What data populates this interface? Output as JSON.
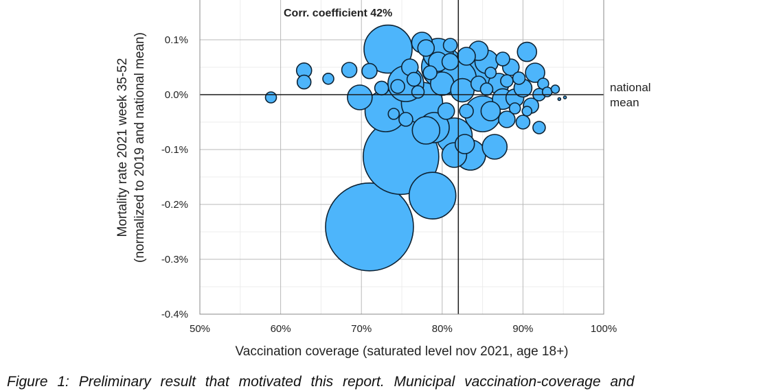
{
  "chart_data": {
    "type": "scatter",
    "subtype": "bubble",
    "title": "Corr. coefficient 42%",
    "xlabel": "Vaccination coverage (saturated level nov 2021, age 18+)",
    "ylabel": [
      "Mortality rate 2021 week 35-52",
      "(normalized to 2019 and national mean)"
    ],
    "xlim": [
      50,
      100
    ],
    "ylim": [
      -0.4,
      0.15
    ],
    "x_ticks": [
      50,
      60,
      70,
      80,
      90,
      100
    ],
    "x_tick_labels": [
      "50%",
      "60%",
      "70%",
      "80%",
      "90%",
      "100%"
    ],
    "y_ticks": [
      0.1,
      0.0,
      -0.1,
      -0.2,
      -0.3,
      -0.4
    ],
    "y_tick_labels": [
      "0.1%",
      "0.0%",
      "-0.1%",
      "-0.2%",
      "-0.3%",
      "-0.4%"
    ],
    "grid": true,
    "reference_lines": {
      "national_mean_x": 82,
      "national_mean_y": 0.0,
      "label": [
        "national",
        "mean"
      ]
    },
    "bubble_color": "#4db5fb",
    "bubble_edge_color": "#0d2233",
    "size_note": "relative bubble size (municipality population, unitless)",
    "points": [
      {
        "x": 71.0,
        "y": -0.241,
        "s": 64
      },
      {
        "x": 74.9,
        "y": -0.113,
        "s": 55
      },
      {
        "x": 78.8,
        "y": -0.184,
        "s": 34
      },
      {
        "x": 73.3,
        "y": 0.083,
        "s": 35
      },
      {
        "x": 73.0,
        "y": -0.03,
        "s": 30
      },
      {
        "x": 75.5,
        "y": 0.02,
        "s": 26
      },
      {
        "x": 77.5,
        "y": -0.015,
        "s": 30
      },
      {
        "x": 80.0,
        "y": 0.05,
        "s": 30
      },
      {
        "x": 82.0,
        "y": 0.03,
        "s": 26
      },
      {
        "x": 84.0,
        "y": 0.045,
        "s": 30
      },
      {
        "x": 85.0,
        "y": -0.035,
        "s": 26
      },
      {
        "x": 81.5,
        "y": -0.075,
        "s": 26
      },
      {
        "x": 79.0,
        "y": -0.06,
        "s": 22
      },
      {
        "x": 83.5,
        "y": -0.11,
        "s": 22
      },
      {
        "x": 86.5,
        "y": -0.095,
        "s": 18
      },
      {
        "x": 81.5,
        "y": -0.11,
        "s": 18
      },
      {
        "x": 78.0,
        "y": -0.065,
        "s": 20
      },
      {
        "x": 77.5,
        "y": 0.095,
        "s": 15
      },
      {
        "x": 79.5,
        "y": 0.075,
        "s": 22
      },
      {
        "x": 79.5,
        "y": 0.06,
        "s": 14
      },
      {
        "x": 80.0,
        "y": 0.02,
        "s": 17
      },
      {
        "x": 82.5,
        "y": 0.008,
        "s": 17
      },
      {
        "x": 84.5,
        "y": 0.08,
        "s": 14
      },
      {
        "x": 85.5,
        "y": 0.06,
        "s": 17
      },
      {
        "x": 87.0,
        "y": 0.02,
        "s": 15
      },
      {
        "x": 88.5,
        "y": 0.05,
        "s": 12
      },
      {
        "x": 87.5,
        "y": -0.008,
        "s": 15
      },
      {
        "x": 89.0,
        "y": -0.006,
        "s": 13
      },
      {
        "x": 90.5,
        "y": 0.078,
        "s": 14
      },
      {
        "x": 91.5,
        "y": 0.04,
        "s": 14
      },
      {
        "x": 90.0,
        "y": 0.012,
        "s": 13
      },
      {
        "x": 91.0,
        "y": -0.02,
        "s": 11
      },
      {
        "x": 90.0,
        "y": -0.05,
        "s": 10
      },
      {
        "x": 92.0,
        "y": -0.06,
        "s": 9
      },
      {
        "x": 88.0,
        "y": -0.045,
        "s": 12
      },
      {
        "x": 86.0,
        "y": -0.03,
        "s": 14
      },
      {
        "x": 76.0,
        "y": 0.05,
        "s": 12
      },
      {
        "x": 75.5,
        "y": -0.045,
        "s": 10
      },
      {
        "x": 74.5,
        "y": 0.015,
        "s": 10
      },
      {
        "x": 77.0,
        "y": 0.005,
        "s": 9
      },
      {
        "x": 76.5,
        "y": 0.028,
        "s": 10
      },
      {
        "x": 78.5,
        "y": 0.04,
        "s": 10
      },
      {
        "x": 81.0,
        "y": 0.06,
        "s": 12
      },
      {
        "x": 83.0,
        "y": 0.07,
        "s": 13
      },
      {
        "x": 84.5,
        "y": 0.02,
        "s": 11
      },
      {
        "x": 85.5,
        "y": 0.01,
        "s": 9
      },
      {
        "x": 87.5,
        "y": 0.065,
        "s": 10
      },
      {
        "x": 89.5,
        "y": 0.03,
        "s": 9
      },
      {
        "x": 92.0,
        "y": 0.0,
        "s": 9
      },
      {
        "x": 92.5,
        "y": 0.02,
        "s": 8
      },
      {
        "x": 93.0,
        "y": 0.005,
        "s": 7
      },
      {
        "x": 94.0,
        "y": 0.01,
        "s": 6
      },
      {
        "x": 94.5,
        "y": -0.008,
        "s": 2
      },
      {
        "x": 95.2,
        "y": -0.005,
        "s": 2
      },
      {
        "x": 69.8,
        "y": -0.005,
        "s": 18
      },
      {
        "x": 71.0,
        "y": 0.043,
        "s": 11
      },
      {
        "x": 68.5,
        "y": 0.045,
        "s": 11
      },
      {
        "x": 58.8,
        "y": -0.005,
        "s": 8
      },
      {
        "x": 62.9,
        "y": 0.044,
        "s": 11
      },
      {
        "x": 62.9,
        "y": 0.023,
        "s": 10
      },
      {
        "x": 65.9,
        "y": 0.029,
        "s": 8
      },
      {
        "x": 72.5,
        "y": 0.012,
        "s": 10
      },
      {
        "x": 74.0,
        "y": -0.035,
        "s": 8
      },
      {
        "x": 82.8,
        "y": -0.09,
        "s": 14
      },
      {
        "x": 80.5,
        "y": -0.03,
        "s": 12
      },
      {
        "x": 83.0,
        "y": -0.03,
        "s": 10
      },
      {
        "x": 86.0,
        "y": 0.04,
        "s": 8
      },
      {
        "x": 88.0,
        "y": 0.025,
        "s": 9
      },
      {
        "x": 89.0,
        "y": -0.025,
        "s": 8
      },
      {
        "x": 90.5,
        "y": -0.03,
        "s": 7
      },
      {
        "x": 81.0,
        "y": 0.09,
        "s": 10
      },
      {
        "x": 78.0,
        "y": 0.085,
        "s": 12
      }
    ]
  },
  "caption": "Figure 1: Preliminary result that motivated this report. Municipal vaccination-coverage and"
}
